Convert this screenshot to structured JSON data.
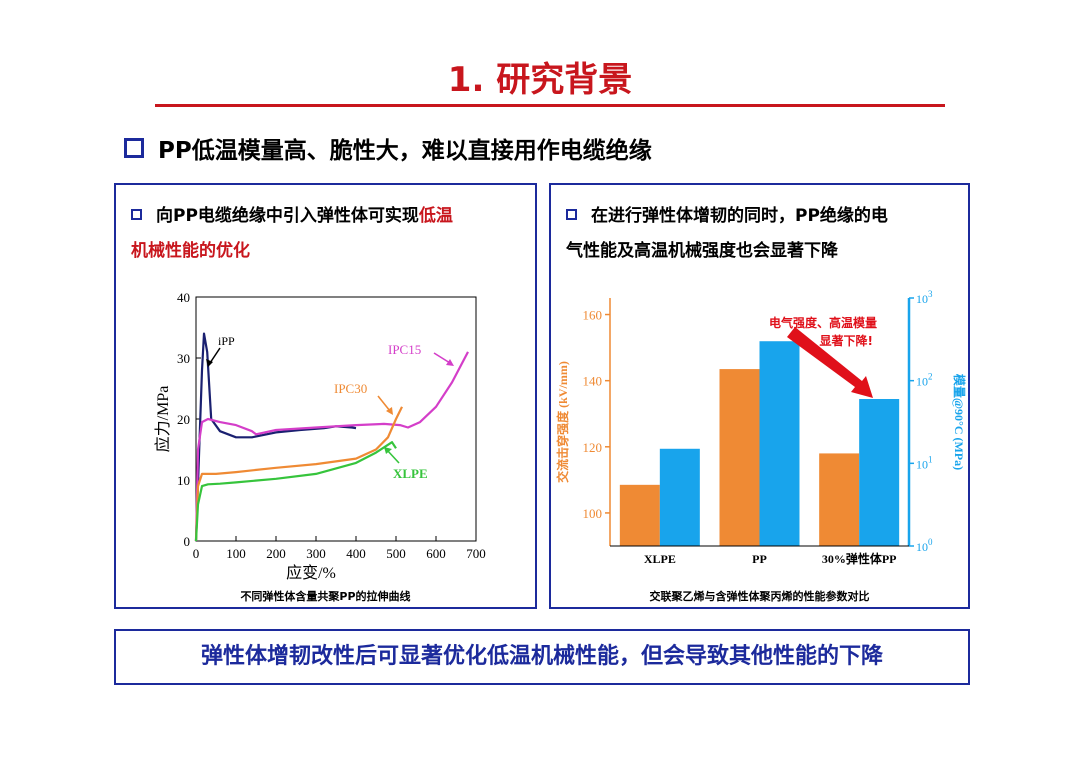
{
  "title": "1. 研究背景",
  "subheading": "PP低温模量高、脆性大，难以直接用作电缆绝缘",
  "left_panel": {
    "text_line1": "向PP电缆绝缘中引入弹性体可实现",
    "text_highlight1": "低温",
    "text_highlight2": "机械性能的优化",
    "caption": "不同弹性体含量共聚PP的拉伸曲线"
  },
  "right_panel": {
    "text_line1": "在进行弹性体增韧的同时，PP绝缘的电",
    "text_line2": "气性能及高温机械强度也会显著下降",
    "caption": "交联聚乙烯与含弹性体聚丙烯的性能参数对比",
    "annotation_line1": "电气强度、高温模量",
    "annotation_line2": "显著下降!"
  },
  "conclusion": "弹性体增韧改性后可显著优化低温机械性能，但会导致其他性能的下降",
  "colors": {
    "title_red": "#c8161d",
    "border_blue": "#1c2a9c",
    "orange": "#ef8a34",
    "blue": "#18a4ec"
  },
  "chart_data": [
    {
      "type": "line",
      "xlabel": "应变/%",
      "ylabel": "应力/MPa",
      "xlim": [
        0,
        700
      ],
      "ylim": [
        0,
        40
      ],
      "xticks": [
        0,
        100,
        200,
        300,
        400,
        500,
        600,
        700
      ],
      "yticks": [
        0,
        10,
        20,
        30,
        40
      ],
      "series": [
        {
          "name": "iPP",
          "color": "#1a2070",
          "x": [
            0,
            8,
            15,
            20,
            28,
            38,
            60,
            100,
            140,
            200,
            260,
            320,
            350,
            390,
            400
          ],
          "y": [
            0,
            15,
            28,
            34,
            31,
            20,
            18,
            17,
            17,
            17.8,
            18.2,
            18.5,
            18.8,
            18.6,
            18.5
          ]
        },
        {
          "name": "IPC15",
          "color": "#d43ec9",
          "x": [
            0,
            5,
            15,
            30,
            60,
            100,
            140,
            150,
            200,
            300,
            400,
            470,
            510,
            530,
            560,
            600,
            640,
            680
          ],
          "y": [
            0,
            15,
            19.5,
            20,
            19.5,
            19,
            18,
            17.5,
            18.2,
            18.6,
            19,
            19.2,
            19,
            18.6,
            19.5,
            22,
            26,
            31
          ]
        },
        {
          "name": "IPC30",
          "color": "#ef8a34",
          "x": [
            0,
            5,
            15,
            50,
            100,
            200,
            300,
            400,
            450,
            480,
            500,
            515
          ],
          "y": [
            0,
            9,
            11,
            11,
            11.3,
            12,
            12.6,
            13.5,
            15,
            17,
            20,
            22
          ]
        },
        {
          "name": "XLPE",
          "color": "#36c43c",
          "x": [
            0,
            5,
            15,
            30,
            60,
            100,
            200,
            300,
            400,
            450,
            490,
            500
          ],
          "y": [
            0,
            6,
            9,
            9.3,
            9.4,
            9.6,
            10.2,
            11,
            12.8,
            14.5,
            16.2,
            15.2
          ]
        }
      ]
    },
    {
      "type": "bar",
      "categories": [
        "XLPE",
        "PP",
        "30%弹性体PP"
      ],
      "ylabel_left": "交流击穿强度 (kV/mm)",
      "ylabel_right": "模量@90°C (MPa)",
      "ylim_left": [
        90,
        165
      ],
      "yticks_left": [
        100,
        120,
        140,
        160
      ],
      "ylim_right_log": [
        1,
        1000
      ],
      "yticks_right": [
        "10^0",
        "10^1",
        "10^2",
        "10^3"
      ],
      "series": [
        {
          "axis": "left",
          "color": "#ef8a34",
          "values": [
            108.5,
            143.5,
            118
          ]
        },
        {
          "axis": "right",
          "scale": "log",
          "color": "#18a4ec",
          "values": [
            15,
            300,
            60
          ]
        }
      ]
    }
  ]
}
